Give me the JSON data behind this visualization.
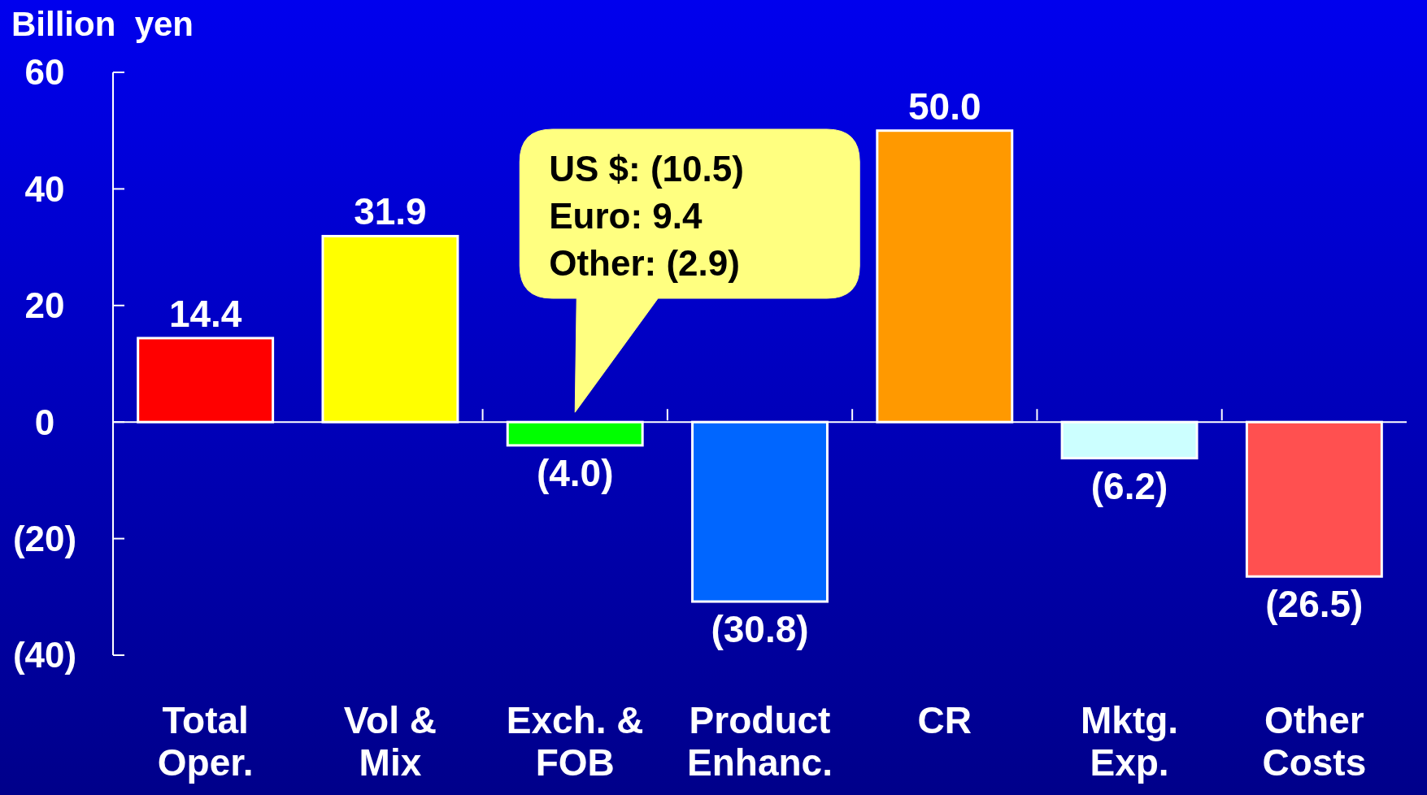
{
  "chart_data": {
    "type": "bar",
    "ylabel": "Billion  yen",
    "categories": [
      "Total\nOper.",
      "Vol &\nMix",
      "Exch. &\nFOB",
      "Product\nEnhanc.",
      "CR",
      "Mktg.\nExp.",
      "Other\nCosts"
    ],
    "values": [
      14.4,
      31.9,
      -4.0,
      -30.8,
      50.0,
      -6.2,
      -26.5
    ],
    "colors": [
      "#ff0000",
      "#ffff00",
      "#00ff00",
      "#0066ff",
      "#ff9900",
      "#ccffff",
      "#ff5050"
    ],
    "value_labels": [
      "14.4",
      "31.9",
      "(4.0)",
      "(30.8)",
      "50.0",
      "(6.2)",
      "(26.5)"
    ],
    "ylim": [
      -40,
      60
    ],
    "yticks": [
      {
        "value": -40,
        "label": "(40)"
      },
      {
        "value": -20,
        "label": "(20)"
      },
      0,
      20,
      40,
      60
    ],
    "annotations": [
      "US $: (10.5)",
      "Euro: 9.4",
      "Other: (2.9)"
    ]
  }
}
